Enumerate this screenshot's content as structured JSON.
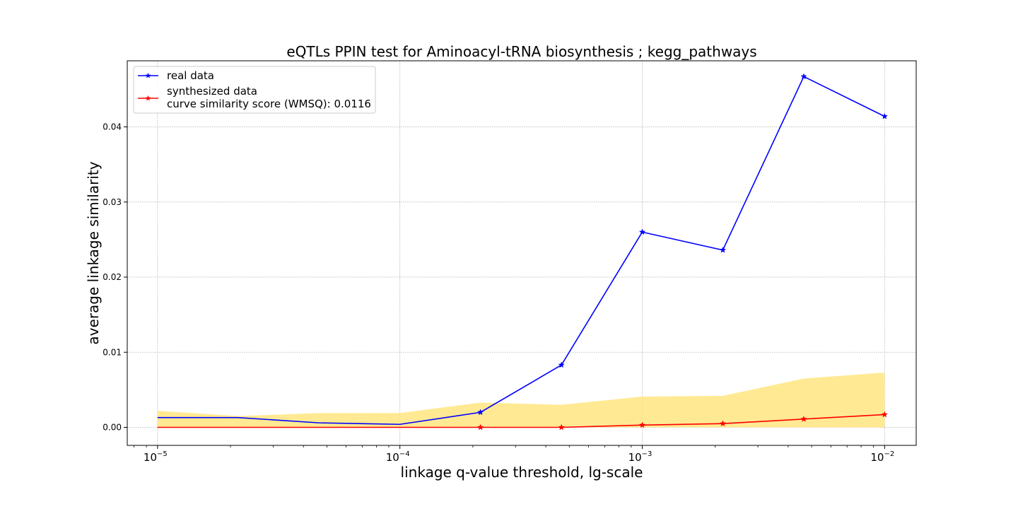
{
  "chart_data": {
    "type": "line",
    "title": "eQTLs PPIN test for Aminoacyl-tRNA biosynthesis ; kegg_pathways",
    "xlabel": "linkage q-value threshold, lg-scale",
    "ylabel": "average linkage similarity",
    "x_scale": "log",
    "xlim": [
      7.5e-06,
      0.0135
    ],
    "ylim": [
      -0.0024,
      0.0488
    ],
    "grid": true,
    "legend_position": "top-left",
    "x_ticks": [
      {
        "value": 1e-05,
        "base": "10",
        "exp": "−5"
      },
      {
        "value": 0.0001,
        "base": "10",
        "exp": "−4"
      },
      {
        "value": 0.001,
        "base": "10",
        "exp": "−3"
      },
      {
        "value": 0.01,
        "base": "10",
        "exp": "−2"
      }
    ],
    "y_ticks": [
      {
        "value": 0.0,
        "label": "0.00"
      },
      {
        "value": 0.01,
        "label": "0.01"
      },
      {
        "value": 0.02,
        "label": "0.02"
      },
      {
        "value": 0.03,
        "label": "0.03"
      },
      {
        "value": 0.04,
        "label": "0.04"
      }
    ],
    "x": [
      1e-05,
      2.15e-05,
      4.64e-05,
      0.0001,
      0.000215,
      0.000464,
      0.001,
      0.00215,
      0.00464,
      0.01
    ],
    "series": [
      {
        "name": "real data",
        "color": "#0000ff",
        "marker": "star",
        "values": [
          0.0013,
          0.0013,
          0.0006,
          0.0004,
          0.002,
          0.0083,
          0.026,
          0.0236,
          0.0467,
          0.0414
        ],
        "marker_indices": [
          4,
          5,
          6,
          7,
          8,
          9
        ]
      },
      {
        "name": "synthesized data\ncurve similarity score (WMSQ): 0.0116",
        "color": "#ff0000",
        "marker": "star",
        "values": [
          0.0,
          0.0,
          0.0,
          0.0,
          0.0,
          0.0,
          0.0003,
          0.0005,
          0.0011,
          0.0017
        ],
        "marker_indices": [
          4,
          5,
          6,
          7,
          8,
          9
        ]
      }
    ],
    "band": {
      "color": "#ffe680",
      "lower": [
        0.0,
        0.0,
        0.0,
        0.0,
        0.0,
        0.0,
        0.0,
        0.0,
        0.0,
        0.0
      ],
      "upper": [
        0.0022,
        0.0015,
        0.0019,
        0.0019,
        0.0033,
        0.003,
        0.0041,
        0.0042,
        0.0065,
        0.0073
      ]
    },
    "legend": [
      {
        "label": "real data",
        "color": "#0000ff"
      },
      {
        "label_lines": [
          "synthesized data",
          "curve similarity score (WMSQ): 0.0116"
        ],
        "color": "#ff0000"
      }
    ]
  }
}
